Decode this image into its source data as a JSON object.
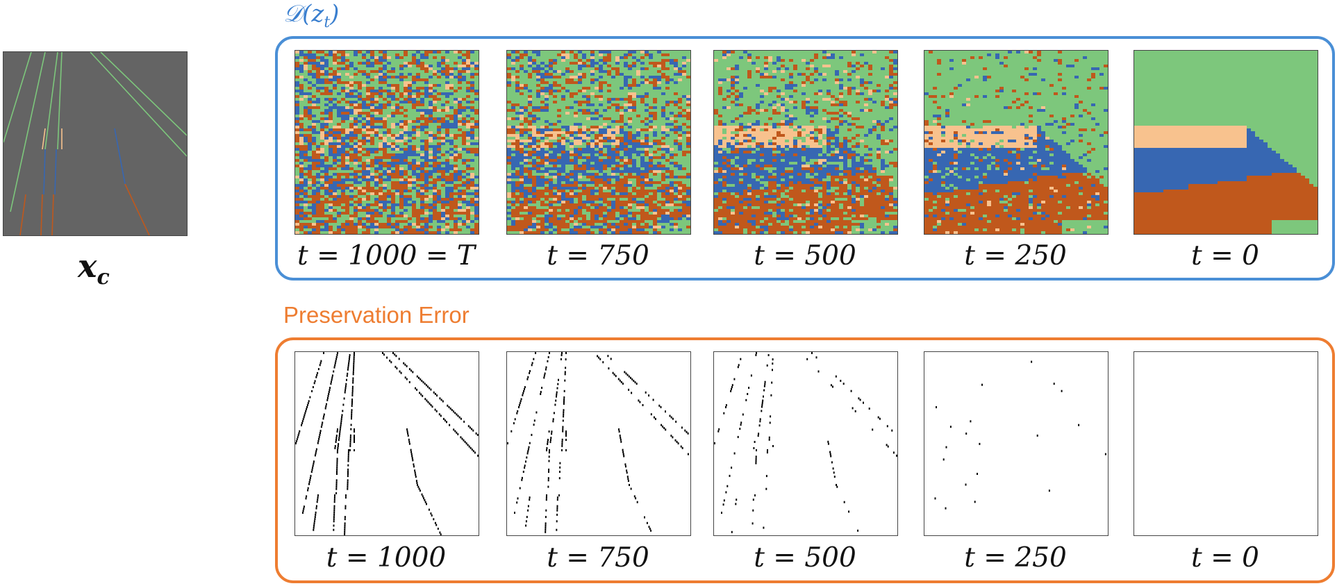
{
  "condition": {
    "label_main": "x",
    "label_sub": "c"
  },
  "decoded_group": {
    "title": "𝒟(z",
    "title_sub": "t",
    "title_close": ")",
    "border_color": "#4a8fd6",
    "captions": [
      "t = 1000 = T",
      "t = 750",
      "t = 500",
      "t = 250",
      "t = 0"
    ]
  },
  "error_group": {
    "title": "Preservation Error",
    "border_color": "#ee7d31",
    "captions": [
      "t = 1000",
      "t = 750",
      "t = 500",
      "t = 250",
      "t = 0"
    ]
  },
  "palette": {
    "green": "#7dc77c",
    "blue": "#3767b2",
    "orange": "#c0581c",
    "peach": "#f8c28e",
    "gray": "#646464"
  },
  "noise_level": [
    1.0,
    0.75,
    0.5,
    0.25,
    0.0
  ]
}
